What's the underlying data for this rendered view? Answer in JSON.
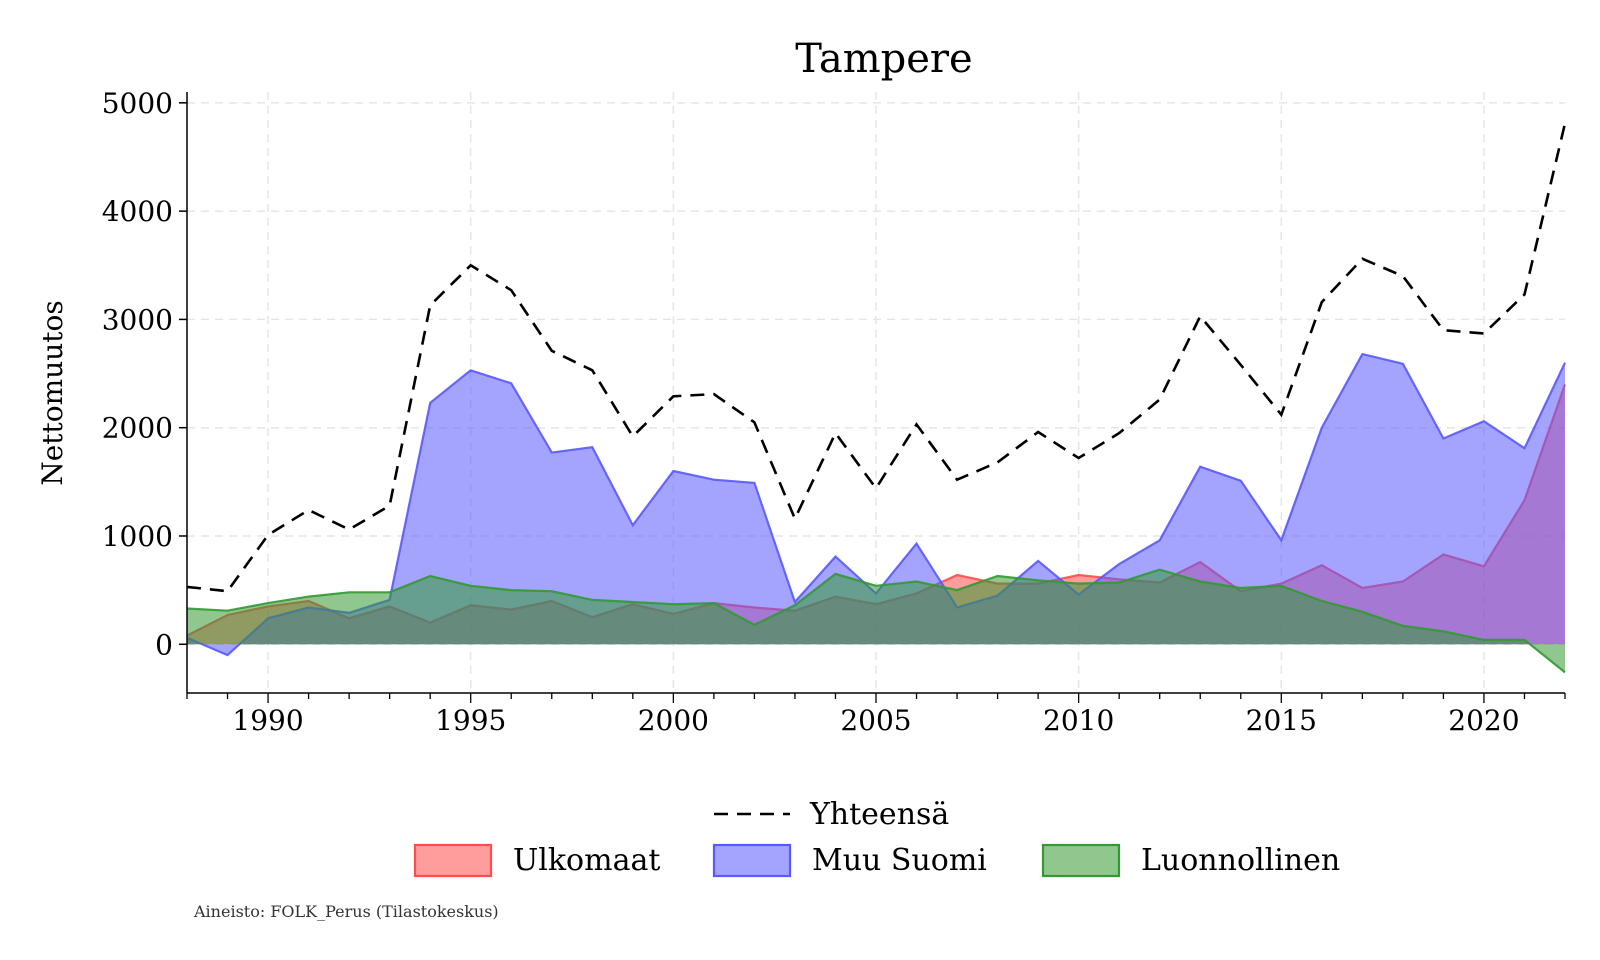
{
  "chart_data": {
    "type": "area",
    "title": "Tampere",
    "xlabel": "",
    "ylabel": "Nettomuutos",
    "xlim": [
      1988,
      2022
    ],
    "ylim": [
      -450,
      5100
    ],
    "x_ticks": [
      1990,
      1995,
      2000,
      2005,
      2010,
      2015,
      2020
    ],
    "y_ticks": [
      0,
      1000,
      2000,
      3000,
      4000,
      5000
    ],
    "grid": true,
    "legend_position": "bottom",
    "x": [
      1988,
      1989,
      1990,
      1991,
      1992,
      1993,
      1994,
      1995,
      1996,
      1997,
      1998,
      1999,
      2000,
      2001,
      2002,
      2003,
      2004,
      2005,
      2006,
      2007,
      2008,
      2009,
      2010,
      2011,
      2012,
      2013,
      2014,
      2015,
      2016,
      2017,
      2018,
      2019,
      2020,
      2021,
      2022
    ],
    "series": [
      {
        "name": "Yhteensä",
        "style": "dashed-line",
        "color": "#000000",
        "values": [
          530,
          490,
          1010,
          1240,
          1060,
          1280,
          3130,
          3500,
          3270,
          2710,
          2530,
          1920,
          2290,
          2310,
          2050,
          1160,
          1950,
          1440,
          2030,
          1520,
          1680,
          1960,
          1720,
          1950,
          2260,
          3030,
          2580,
          2120,
          3160,
          3560,
          3400,
          2900,
          2870,
          3230,
          4810
        ]
      },
      {
        "name": "Ulkomaat",
        "style": "area",
        "color": "#ff4d4d",
        "values": [
          80,
          270,
          350,
          400,
          240,
          350,
          200,
          360,
          320,
          400,
          250,
          370,
          280,
          380,
          340,
          310,
          440,
          370,
          470,
          640,
          560,
          560,
          640,
          600,
          570,
          760,
          490,
          560,
          730,
          520,
          580,
          830,
          720,
          1330,
          2400
        ]
      },
      {
        "name": "Muu Suomi",
        "style": "area",
        "color": "#5959ff",
        "values": [
          60,
          -100,
          240,
          340,
          290,
          410,
          2230,
          2530,
          2410,
          1770,
          1820,
          1100,
          1600,
          1520,
          1490,
          390,
          810,
          470,
          930,
          340,
          450,
          770,
          460,
          740,
          960,
          1640,
          1510,
          960,
          2000,
          2680,
          2590,
          1900,
          2060,
          1810,
          2600
        ]
      },
      {
        "name": "Luonnollinen",
        "style": "area",
        "color": "#339933",
        "values": [
          330,
          310,
          380,
          440,
          480,
          480,
          630,
          540,
          500,
          490,
          410,
          390,
          370,
          380,
          180,
          360,
          650,
          540,
          580,
          500,
          630,
          590,
          560,
          570,
          690,
          580,
          520,
          540,
          400,
          300,
          170,
          120,
          40,
          40,
          -260
        ]
      }
    ],
    "legend": [
      "Yhteensä",
      "Ulkomaat",
      "Muu Suomi",
      "Luonnollinen"
    ]
  },
  "source_note": "Aineisto: FOLK_Perus (Tilastokeskus)"
}
